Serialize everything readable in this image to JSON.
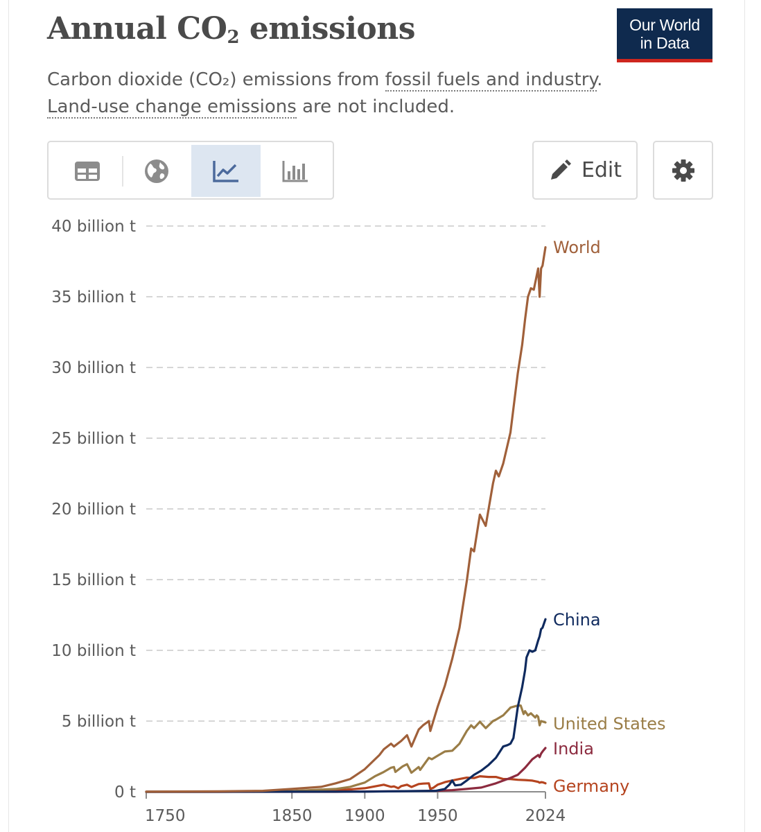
{
  "header": {
    "title_main": "Annual CO",
    "title_sub": "2",
    "title_end": " emissions",
    "logo_line1": "Our World",
    "logo_line2": "in Data",
    "subtitle_part1": "Carbon dioxide (CO₂) emissions from ",
    "subtitle_link1": "fossil fuels and industry",
    "subtitle_part2": ". ",
    "subtitle_link2": "Land-use change emissions",
    "subtitle_part3": " are not included."
  },
  "toolbar": {
    "tabs": [
      {
        "icon": "table-icon",
        "active": false
      },
      {
        "icon": "globe-icon",
        "active": false
      },
      {
        "icon": "line-chart-icon",
        "active": true
      },
      {
        "icon": "bar-chart-icon",
        "active": false
      }
    ],
    "edit_label": "Edit",
    "edit_icon": "pencil-icon",
    "settings_icon": "gear-icon"
  },
  "colors": {
    "World": "#a0603a",
    "China": "#0f2a5e",
    "United States": "#9a7d47",
    "India": "#8c2b3f",
    "Germany": "#b5441f"
  },
  "chart_data": {
    "type": "line",
    "title": "Annual CO₂ emissions",
    "ylim": [
      0,
      40000000000
    ],
    "xlim": [
      1750,
      2024
    ],
    "y_ticks": [
      {
        "value": 0,
        "label": "0 t"
      },
      {
        "value": 5000000000,
        "label": "5 billion t"
      },
      {
        "value": 10000000000,
        "label": "10 billion t"
      },
      {
        "value": 15000000000,
        "label": "15 billion t"
      },
      {
        "value": 20000000000,
        "label": "20 billion t"
      },
      {
        "value": 25000000000,
        "label": "25 billion t"
      },
      {
        "value": 30000000000,
        "label": "30 billion t"
      },
      {
        "value": 35000000000,
        "label": "35 billion t"
      },
      {
        "value": 40000000000,
        "label": "40 billion t"
      }
    ],
    "x_ticks": [
      {
        "value": 1750,
        "label": "1750"
      },
      {
        "value": 1850,
        "label": "1850"
      },
      {
        "value": 1900,
        "label": "1900"
      },
      {
        "value": 1950,
        "label": "1950"
      },
      {
        "value": 2024,
        "label": "2024"
      }
    ],
    "grid": "horizontal dashed",
    "series": [
      {
        "name": "World",
        "points": [
          [
            1750,
            0.009
          ],
          [
            1800,
            0.03
          ],
          [
            1830,
            0.07
          ],
          [
            1850,
            0.2
          ],
          [
            1870,
            0.35
          ],
          [
            1880,
            0.6
          ],
          [
            1890,
            0.9
          ],
          [
            1900,
            1.6
          ],
          [
            1910,
            2.6
          ],
          [
            1913,
            3.0
          ],
          [
            1918,
            3.4
          ],
          [
            1920,
            3.2
          ],
          [
            1925,
            3.6
          ],
          [
            1929,
            4.0
          ],
          [
            1932,
            3.2
          ],
          [
            1937,
            4.4
          ],
          [
            1940,
            4.7
          ],
          [
            1944,
            5.0
          ],
          [
            1945,
            4.3
          ],
          [
            1950,
            6.0
          ],
          [
            1955,
            7.5
          ],
          [
            1960,
            9.4
          ],
          [
            1965,
            11.6
          ],
          [
            1970,
            14.9
          ],
          [
            1973,
            17.2
          ],
          [
            1975,
            17.0
          ],
          [
            1979,
            19.6
          ],
          [
            1983,
            18.8
          ],
          [
            1988,
            21.8
          ],
          [
            1990,
            22.7
          ],
          [
            1992,
            22.3
          ],
          [
            1995,
            23.2
          ],
          [
            2000,
            25.4
          ],
          [
            2005,
            29.6
          ],
          [
            2008,
            31.6
          ],
          [
            2010,
            33.4
          ],
          [
            2012,
            35.0
          ],
          [
            2014,
            35.6
          ],
          [
            2016,
            35.5
          ],
          [
            2019,
            37.0
          ],
          [
            2020,
            35.0
          ],
          [
            2021,
            37.0
          ],
          [
            2022,
            37.2
          ],
          [
            2024,
            38.5
          ]
        ]
      },
      {
        "name": "China",
        "points": [
          [
            1750,
            0
          ],
          [
            1900,
            0.01
          ],
          [
            1949,
            0.07
          ],
          [
            1955,
            0.2
          ],
          [
            1958,
            0.5
          ],
          [
            1960,
            0.8
          ],
          [
            1962,
            0.45
          ],
          [
            1966,
            0.5
          ],
          [
            1970,
            0.8
          ],
          [
            1975,
            1.2
          ],
          [
            1980,
            1.5
          ],
          [
            1985,
            1.9
          ],
          [
            1990,
            2.4
          ],
          [
            1995,
            3.2
          ],
          [
            1998,
            3.3
          ],
          [
            2000,
            3.4
          ],
          [
            2002,
            3.8
          ],
          [
            2005,
            6.0
          ],
          [
            2008,
            7.4
          ],
          [
            2010,
            8.6
          ],
          [
            2011,
            9.5
          ],
          [
            2013,
            10.0
          ],
          [
            2015,
            9.9
          ],
          [
            2017,
            10.0
          ],
          [
            2019,
            10.7
          ],
          [
            2020,
            11.0
          ],
          [
            2021,
            11.5
          ],
          [
            2022,
            11.6
          ],
          [
            2024,
            12.2
          ]
        ]
      },
      {
        "name": "United States",
        "points": [
          [
            1750,
            0
          ],
          [
            1800,
            0.003
          ],
          [
            1850,
            0.05
          ],
          [
            1870,
            0.15
          ],
          [
            1880,
            0.2
          ],
          [
            1890,
            0.35
          ],
          [
            1900,
            0.65
          ],
          [
            1907,
            1.1
          ],
          [
            1910,
            1.25
          ],
          [
            1913,
            1.4
          ],
          [
            1918,
            1.7
          ],
          [
            1920,
            1.75
          ],
          [
            1921,
            1.4
          ],
          [
            1926,
            1.8
          ],
          [
            1929,
            1.95
          ],
          [
            1932,
            1.35
          ],
          [
            1937,
            1.75
          ],
          [
            1938,
            1.55
          ],
          [
            1944,
            2.4
          ],
          [
            1946,
            2.3
          ],
          [
            1950,
            2.55
          ],
          [
            1955,
            2.85
          ],
          [
            1960,
            2.9
          ],
          [
            1965,
            3.4
          ],
          [
            1970,
            4.3
          ],
          [
            1973,
            4.7
          ],
          [
            1975,
            4.5
          ],
          [
            1979,
            4.95
          ],
          [
            1983,
            4.5
          ],
          [
            1988,
            5.0
          ],
          [
            1990,
            5.1
          ],
          [
            1995,
            5.4
          ],
          [
            2000,
            5.95
          ],
          [
            2005,
            6.1
          ],
          [
            2007,
            6.1
          ],
          [
            2009,
            5.5
          ],
          [
            2010,
            5.7
          ],
          [
            2012,
            5.4
          ],
          [
            2014,
            5.55
          ],
          [
            2017,
            5.25
          ],
          [
            2018,
            5.4
          ],
          [
            2019,
            5.3
          ],
          [
            2020,
            4.7
          ],
          [
            2021,
            5.0
          ],
          [
            2024,
            4.9
          ]
        ]
      },
      {
        "name": "India",
        "points": [
          [
            1750,
            0
          ],
          [
            1880,
            0.002
          ],
          [
            1900,
            0.02
          ],
          [
            1920,
            0.04
          ],
          [
            1940,
            0.06
          ],
          [
            1950,
            0.07
          ],
          [
            1960,
            0.12
          ],
          [
            1970,
            0.2
          ],
          [
            1980,
            0.3
          ],
          [
            1990,
            0.6
          ],
          [
            2000,
            0.98
          ],
          [
            2005,
            1.2
          ],
          [
            2010,
            1.7
          ],
          [
            2015,
            2.3
          ],
          [
            2019,
            2.6
          ],
          [
            2020,
            2.45
          ],
          [
            2021,
            2.7
          ],
          [
            2022,
            2.85
          ],
          [
            2024,
            3.1
          ]
        ]
      },
      {
        "name": "Germany",
        "points": [
          [
            1750,
            0
          ],
          [
            1800,
            0.002
          ],
          [
            1850,
            0.03
          ],
          [
            1870,
            0.07
          ],
          [
            1880,
            0.1
          ],
          [
            1890,
            0.17
          ],
          [
            1900,
            0.25
          ],
          [
            1913,
            0.5
          ],
          [
            1918,
            0.35
          ],
          [
            1920,
            0.38
          ],
          [
            1923,
            0.25
          ],
          [
            1925,
            0.4
          ],
          [
            1929,
            0.5
          ],
          [
            1932,
            0.34
          ],
          [
            1937,
            0.55
          ],
          [
            1940,
            0.58
          ],
          [
            1944,
            0.6
          ],
          [
            1945,
            0.2
          ],
          [
            1947,
            0.28
          ],
          [
            1950,
            0.5
          ],
          [
            1955,
            0.68
          ],
          [
            1960,
            0.8
          ],
          [
            1965,
            0.9
          ],
          [
            1970,
            1.0
          ],
          [
            1975,
            0.97
          ],
          [
            1979,
            1.1
          ],
          [
            1985,
            1.05
          ],
          [
            1990,
            1.05
          ],
          [
            1995,
            0.9
          ],
          [
            2000,
            0.9
          ],
          [
            2005,
            0.85
          ],
          [
            2010,
            0.83
          ],
          [
            2015,
            0.79
          ],
          [
            2019,
            0.7
          ],
          [
            2020,
            0.64
          ],
          [
            2021,
            0.68
          ],
          [
            2022,
            0.67
          ],
          [
            2024,
            0.6
          ]
        ]
      }
    ],
    "point_units": "billion t",
    "labels": [
      "World",
      "China",
      "United States",
      "India",
      "Germany"
    ]
  }
}
